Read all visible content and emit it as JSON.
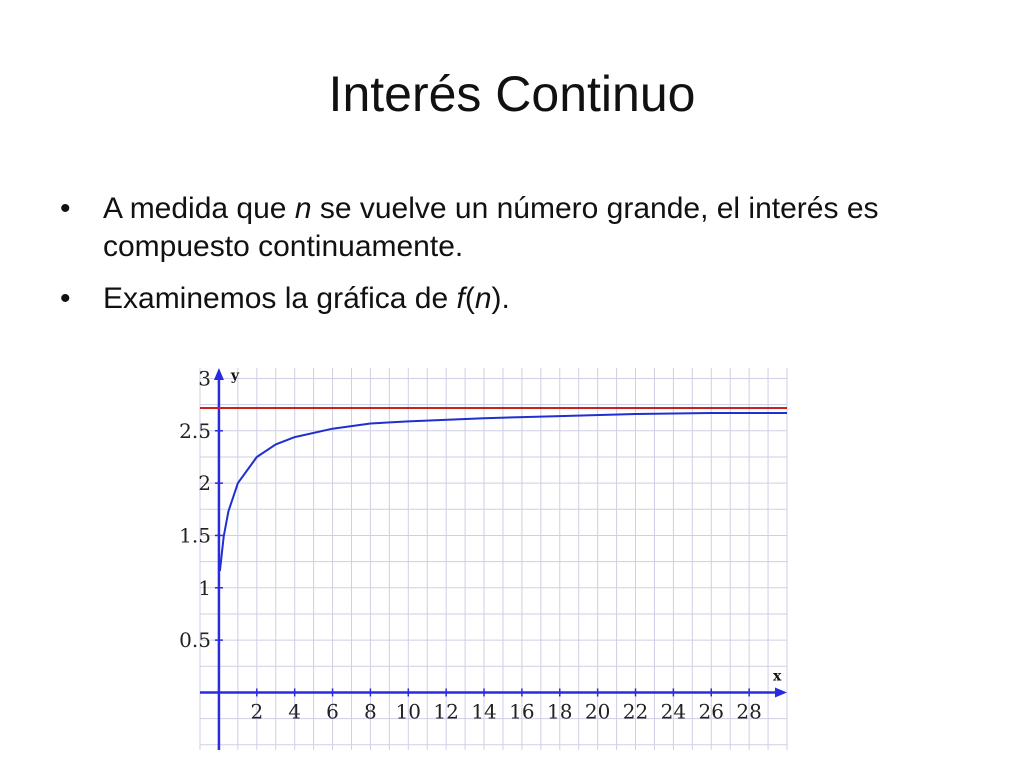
{
  "slide": {
    "title": "Interés Continuo",
    "bullets": [
      {
        "symbol": "•",
        "parts": [
          "A medida que ",
          "n",
          " se vuelve un número grande, el interés es compuesto continuamente."
        ]
      },
      {
        "symbol": "•",
        "parts": [
          "Examinemos la gráfica de ",
          "f",
          "(",
          "n",
          ")."
        ]
      }
    ]
  },
  "chart_data": {
    "type": "line",
    "title": "",
    "xlabel": "x",
    "ylabel": "y",
    "xlim": [
      -1,
      30
    ],
    "ylim": [
      -0.55,
      3.1
    ],
    "x_ticks": [
      2,
      4,
      6,
      8,
      10,
      12,
      14,
      16,
      18,
      20,
      22,
      24,
      26,
      28
    ],
    "x_tick_labels": [
      "2",
      "4",
      "6",
      "8",
      "10",
      "12",
      "14",
      "16",
      "18",
      "20",
      "22",
      "24",
      "26",
      "28"
    ],
    "y_ticks": [
      0.5,
      1,
      1.5,
      2,
      2.5,
      3
    ],
    "y_tick_labels": [
      "0.5",
      "1",
      "1.5",
      "2",
      "2.5",
      "3"
    ],
    "grid": true,
    "legend": "none",
    "series": [
      {
        "function": "(1 + 1/x)^x",
        "color": "#1f2fd0",
        "x": [
          0.05,
          0.25,
          0.5,
          1,
          2,
          3,
          4,
          6,
          8,
          10,
          14,
          18,
          22,
          26,
          30
        ],
        "values": [
          1.16,
          1.49,
          1.73,
          2.0,
          2.25,
          2.37,
          2.44,
          2.52,
          2.57,
          2.59,
          2.62,
          2.64,
          2.66,
          2.67,
          2.67
        ]
      },
      {
        "function": "y = e",
        "color": "#cc2020",
        "x": [
          -1,
          30
        ],
        "values": [
          2.718,
          2.718
        ]
      }
    ],
    "colors": {
      "grid": "#cfcfe6",
      "axis": "#2a2ae0"
    }
  }
}
